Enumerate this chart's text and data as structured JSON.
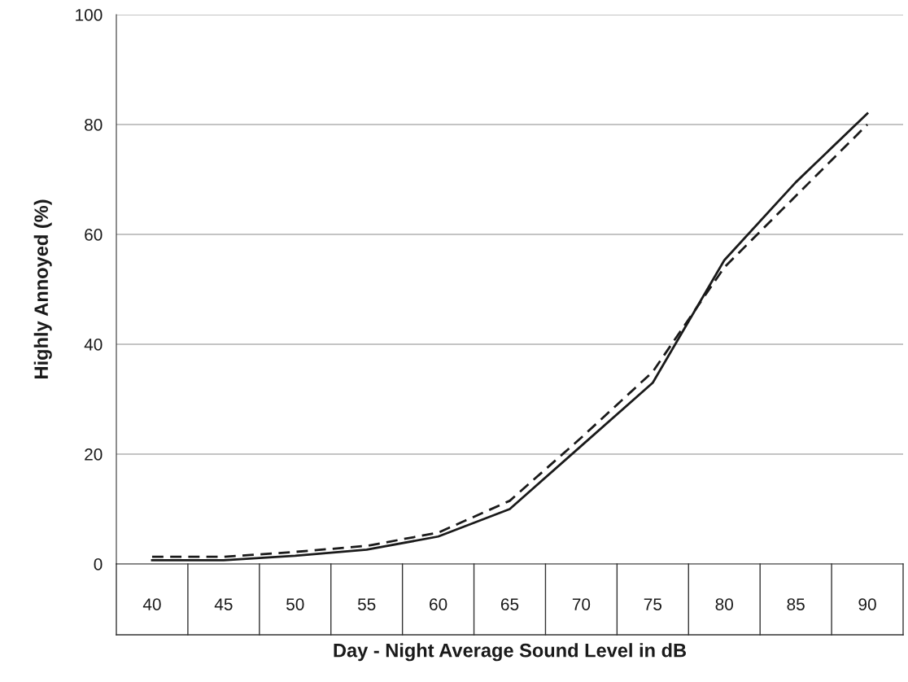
{
  "chart_data": {
    "type": "line",
    "xlabel": "Day - Night Average Sound Level in dB",
    "ylabel": "Highly Annoyed (%)",
    "categories": [
      "40",
      "45",
      "50",
      "55",
      "60",
      "65",
      "70",
      "75",
      "80",
      "85",
      "90"
    ],
    "series": [
      {
        "color": "#1a1a1a",
        "line_style": "solid",
        "values": [
          0.7,
          0.7,
          1.5,
          2.6,
          5,
          10,
          21.5,
          33,
          55.3,
          69.5,
          82
        ]
      },
      {
        "color": "#1a1a1a",
        "line_style": "dashed",
        "values": [
          1.3,
          1.3,
          2.2,
          3.3,
          5.7,
          11.5,
          23,
          35,
          54,
          67,
          80
        ]
      }
    ],
    "ylim": [
      0,
      100
    ],
    "yticks": [
      0,
      20,
      40,
      60,
      80,
      100
    ],
    "grid": "y",
    "marker": "none"
  }
}
